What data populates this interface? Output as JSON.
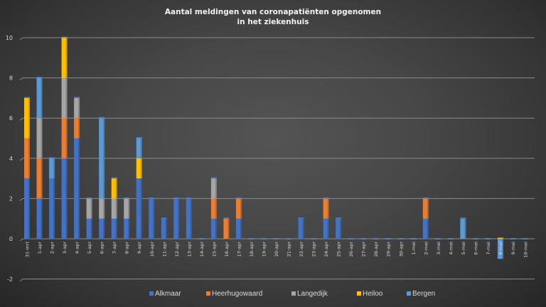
{
  "chart_data": {
    "type": "bar",
    "stacked": true,
    "title": "Aantal meldingen van coronapatiënten opgenomen",
    "title_line2": "in het ziekenhuis",
    "xlabel": "",
    "ylabel": "",
    "ylim": [
      -2,
      10
    ],
    "yticks": [
      -2,
      0,
      2,
      4,
      6,
      8,
      10
    ],
    "grid": true,
    "legend_position": "bottom",
    "categories": [
      "31-mrt",
      "1-apr",
      "2-apr",
      "3-apr",
      "4-apr",
      "5-apr",
      "6-apr",
      "7-apr",
      "8-apr",
      "9-apr",
      "10-apr",
      "11-apr",
      "12-apr",
      "13-apr",
      "14-apr",
      "15-apr",
      "16-apr",
      "17-apr",
      "18-apr",
      "19-apr",
      "20-apr",
      "21-apr",
      "22-apr",
      "23-apr",
      "24-apr",
      "25-apr",
      "26-apr",
      "27-apr",
      "28-apr",
      "29-apr",
      "30-apr",
      "1-mei",
      "2-mei",
      "3-mei",
      "4-mei",
      "5-mei",
      "6-mei",
      "7-mei",
      "8-mei",
      "9-mei",
      "10-mei"
    ],
    "series": [
      {
        "name": "Alkmaar",
        "color": "#4472C4",
        "values": [
          3,
          2,
          3,
          4,
          5,
          1,
          1,
          1,
          1,
          3,
          2,
          1,
          2,
          2,
          0,
          1,
          0,
          1,
          0,
          0,
          0,
          0,
          1,
          0,
          1,
          1,
          0,
          0,
          0,
          0,
          0,
          0,
          1,
          0,
          0,
          0,
          0,
          0,
          0,
          0,
          0
        ]
      },
      {
        "name": "Heerhugowaard",
        "color": "#ED7D31",
        "values": [
          2,
          2,
          0,
          2,
          1,
          0,
          0,
          0,
          0,
          0,
          0,
          0,
          0,
          0,
          0,
          1,
          1,
          1,
          0,
          0,
          0,
          0,
          0,
          0,
          1,
          0,
          0,
          0,
          0,
          0,
          0,
          0,
          1,
          0,
          0,
          0,
          0,
          0,
          0,
          0,
          0
        ]
      },
      {
        "name": "Langedijk",
        "color": "#A5A5A5",
        "values": [
          0,
          2,
          0,
          2,
          1,
          1,
          1,
          1,
          1,
          0,
          0,
          0,
          0,
          0,
          0,
          1,
          0,
          0,
          0,
          0,
          0,
          0,
          0,
          0,
          0,
          0,
          0,
          0,
          0,
          0,
          0,
          0,
          0,
          0,
          0,
          0,
          0,
          0,
          0,
          0,
          0
        ]
      },
      {
        "name": "Heiloo",
        "color": "#FFC000",
        "values": [
          2,
          0,
          0,
          2,
          0,
          0,
          0,
          1,
          0,
          1,
          0,
          0,
          0,
          0,
          0,
          0,
          0,
          0,
          0,
          0,
          0,
          0,
          0,
          0,
          0,
          0,
          0,
          0,
          0,
          0,
          0,
          0,
          0,
          0,
          0,
          0,
          0,
          0,
          0,
          0,
          0
        ]
      },
      {
        "name": "Bergen",
        "color": "#5B9BD5",
        "values": [
          0,
          2,
          1,
          0,
          0,
          0,
          4,
          0,
          0,
          1,
          0,
          0,
          0,
          0,
          0,
          0,
          0,
          0,
          0,
          0,
          0,
          0,
          0,
          0,
          0,
          0,
          0,
          0,
          0,
          0,
          0,
          0,
          0,
          0,
          0,
          1,
          0,
          0,
          -1,
          0,
          0
        ]
      }
    ]
  }
}
